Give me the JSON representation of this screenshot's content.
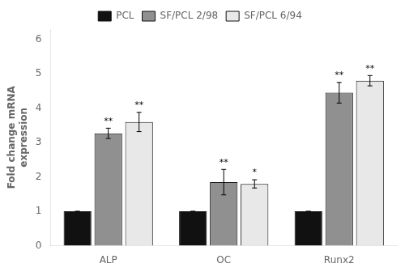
{
  "chart_data": {
    "type": "bar",
    "categories": [
      "ALP",
      "OC",
      "Runx2"
    ],
    "series": [
      {
        "name": "PCL",
        "color": "#111111",
        "values": [
          1.0,
          1.0,
          1.0
        ],
        "errors": [
          0.0,
          0.0,
          0.0
        ]
      },
      {
        "name": "SF/PCL 2/98",
        "color": "#909090",
        "values": [
          3.27,
          1.85,
          4.45
        ],
        "errors": [
          0.15,
          0.37,
          0.3
        ],
        "annotations": [
          "**",
          "**",
          "**"
        ]
      },
      {
        "name": "SF/PCL 6/94",
        "color": "#e8e8e8",
        "values": [
          3.6,
          1.8,
          4.8
        ],
        "errors": [
          0.28,
          0.12,
          0.15
        ],
        "annotations": [
          "**",
          "*",
          "**"
        ]
      }
    ],
    "y_label": "Fold change mRNA\nexpression",
    "ylim": [
      0,
      6.3
    ],
    "yticks": [
      0,
      1,
      2,
      3,
      4,
      5,
      6
    ],
    "grid": false,
    "legend": "top"
  }
}
